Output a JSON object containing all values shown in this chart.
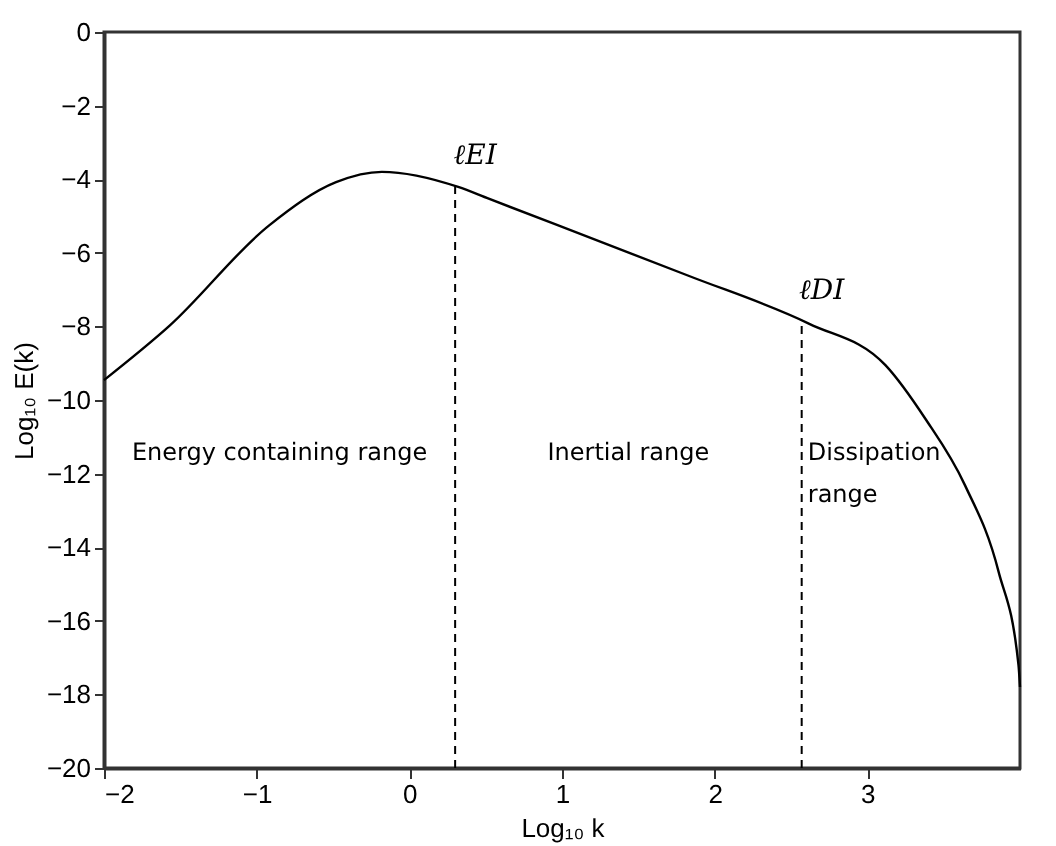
{
  "chart_data": {
    "type": "line",
    "xlabel": "Log₁₀ k",
    "ylabel": "Log₁₀ E(k)",
    "xlim": [
      -2,
      4
    ],
    "xticks": [
      -2,
      -1,
      0,
      1,
      2,
      3
    ],
    "ylim": [
      -20,
      0
    ],
    "yticks": [
      0,
      -2,
      -4,
      -6,
      -8,
      -10,
      -12,
      -14,
      -16,
      -18,
      -20
    ],
    "grid": false,
    "marker": "none",
    "line_style": "solid",
    "series": [
      {
        "color": "#000000",
        "x": [
          -2,
          -1.57,
          -0.92,
          -0.48,
          -0.18,
          0.32,
          0.52,
          1.82,
          2.62,
          3.12,
          3.38,
          3.64,
          3.86,
          3.99,
          4
        ],
        "values": [
          -9.46,
          -7.98,
          -5.26,
          -4.08,
          -3.8,
          -4.21,
          -4.53,
          -6.61,
          -7.93,
          -9.06,
          -10.51,
          -12.32,
          -14.67,
          -17.2,
          -17.8
        ]
      }
    ],
    "ref_lines": [
      {
        "axis": "x",
        "value": 0.3,
        "label": "ℓEI",
        "line_style": "dashed",
        "color": "#000000"
      },
      {
        "axis": "x",
        "value": 2.57,
        "label": "ℓDI",
        "line_style": "dashed",
        "color": "#000000"
      }
    ],
    "annotations": [
      "Energy containing range",
      "Inertial range",
      "Dissipation\nrange"
    ]
  }
}
